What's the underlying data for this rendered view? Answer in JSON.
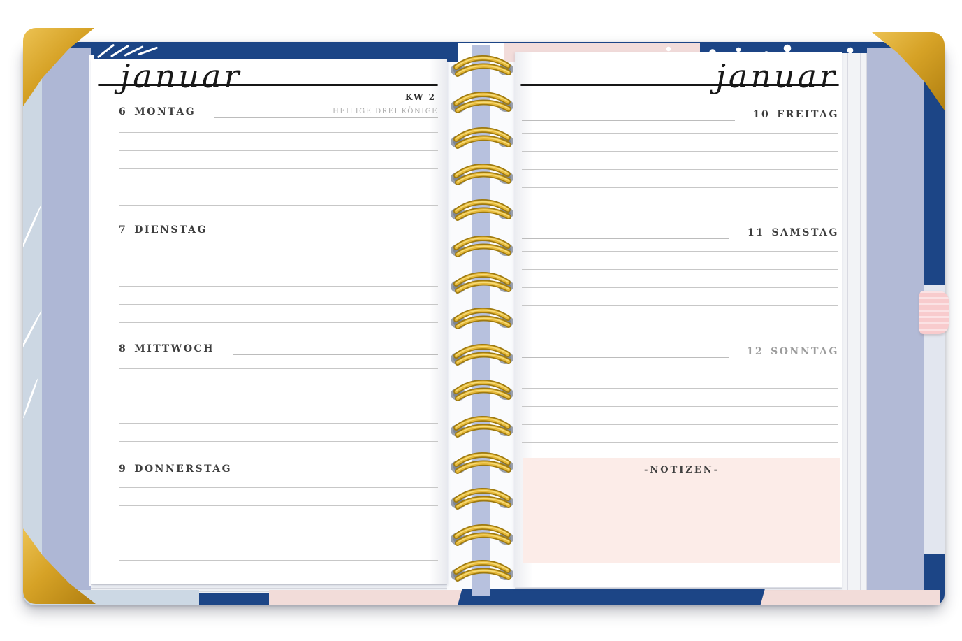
{
  "planner": {
    "left_page": {
      "month_label": "januar",
      "week_label": "KW 2",
      "days": [
        {
          "number": "6",
          "name": "MONTAG",
          "note": "HEILIGE DREI KÖNIGE"
        },
        {
          "number": "7",
          "name": "DIENSTAG"
        },
        {
          "number": "8",
          "name": "MITTWOCH"
        },
        {
          "number": "9",
          "name": "DONNERSTAG"
        }
      ]
    },
    "right_page": {
      "month_label": "januar",
      "days": [
        {
          "number": "10",
          "name": "FREITAG"
        },
        {
          "number": "11",
          "name": "SAMSTAG"
        },
        {
          "number": "12",
          "name": "SONNTAG"
        }
      ],
      "notes_label": "-NOTIZEN-"
    },
    "colors": {
      "navy": "#1c4586",
      "gold": "#cf9b22",
      "coil_gold": "#d4a32c",
      "lavender_page_edge": "#aeb7d5",
      "light_blue_edge": "#ccd7e3",
      "pink_cover": "#f2dcda",
      "notes_box_pink": "#fcece8",
      "pen_loop_pink": "#f8cbcd"
    }
  }
}
